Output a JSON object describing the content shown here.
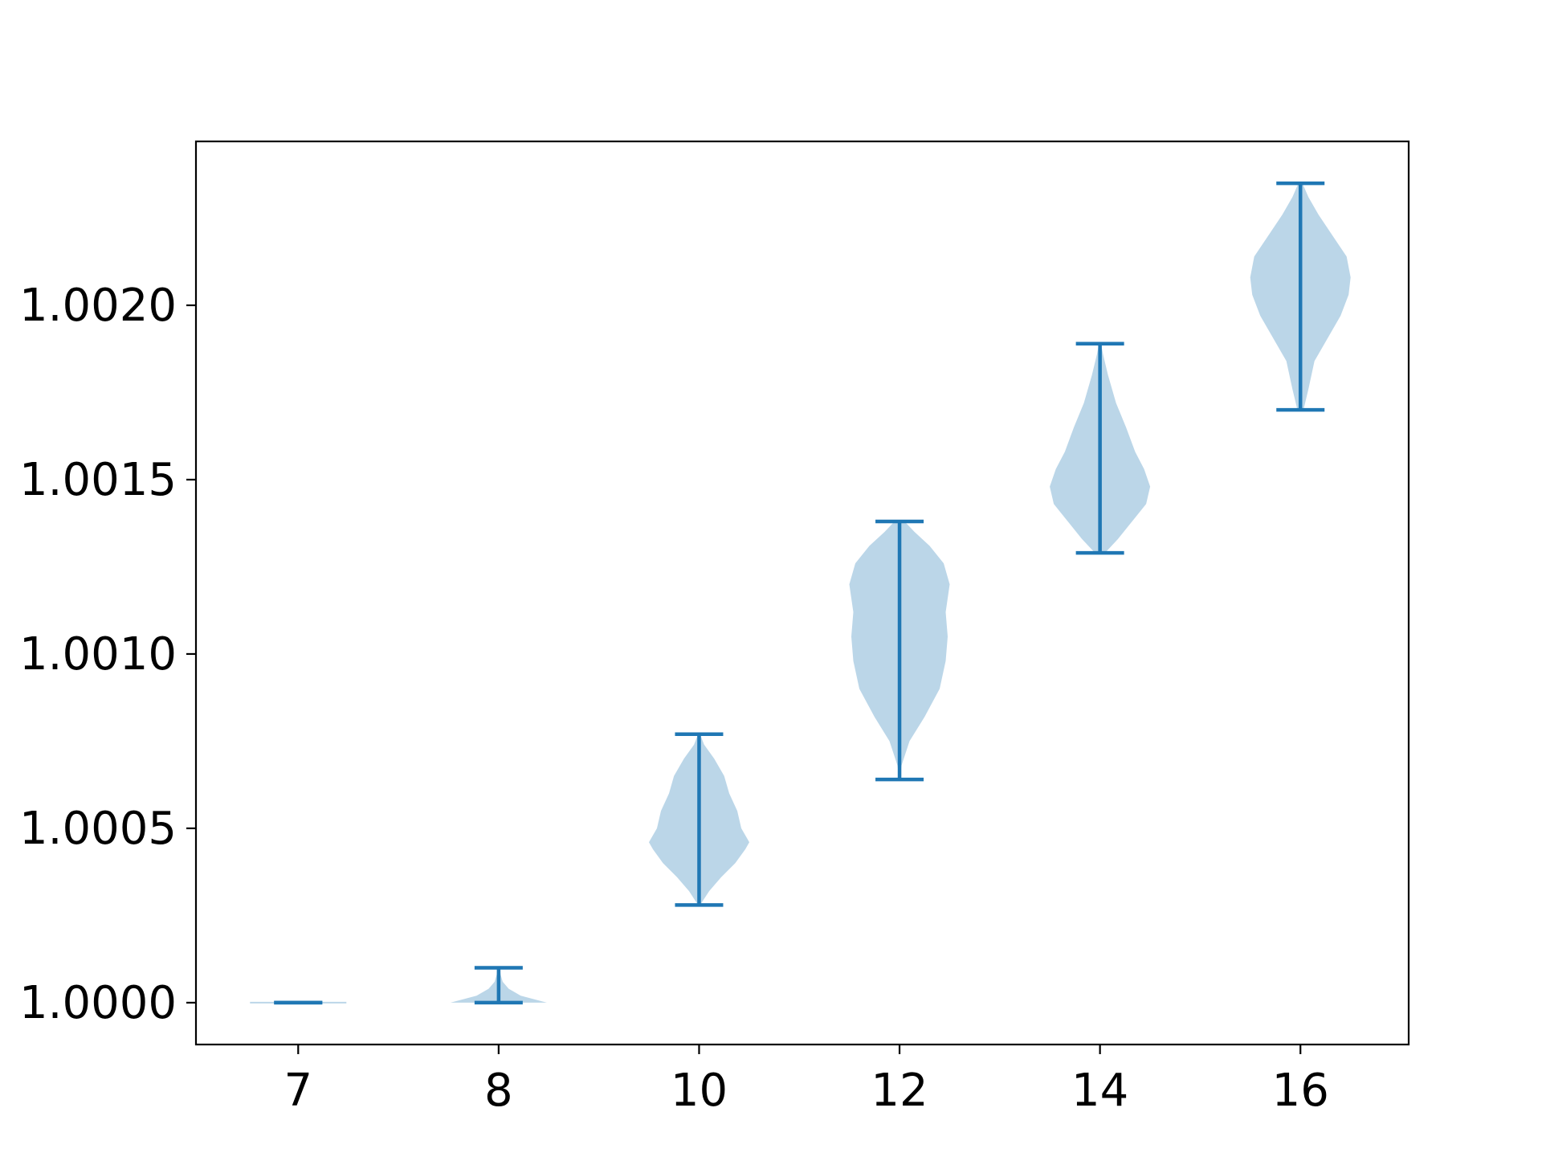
{
  "chart_data": {
    "type": "violin",
    "title": "",
    "xlabel": "",
    "ylabel": "",
    "categories": [
      "7",
      "8",
      "10",
      "12",
      "14",
      "16"
    ],
    "ylim": [
      0.99988,
      1.00247
    ],
    "yticks": [
      "1.0000",
      "1.0005",
      "1.0010",
      "1.0015",
      "1.0020"
    ],
    "ytick_values": [
      1.0,
      1.0005,
      1.001,
      1.0015,
      1.002
    ],
    "grid": false,
    "colors": {
      "body": "#1f77b4",
      "line": "#1f77b4",
      "axis": "#000000"
    },
    "series": [
      {
        "category": "7",
        "min": 1.0,
        "max": 1.0,
        "density": [
          [
            1.0,
            0.48
          ]
        ]
      },
      {
        "category": "8",
        "min": 1.0,
        "max": 1.0001,
        "density": [
          [
            1.0,
            0.48
          ],
          [
            1.00002,
            0.22
          ],
          [
            1.00004,
            0.1
          ],
          [
            1.00006,
            0.04
          ],
          [
            1.00008,
            0.02
          ],
          [
            1.0001,
            0.01
          ]
        ]
      },
      {
        "category": "10",
        "min": 1.00028,
        "max": 1.00077,
        "density": [
          [
            1.00028,
            0.01
          ],
          [
            1.00032,
            0.1
          ],
          [
            1.00036,
            0.22
          ],
          [
            1.0004,
            0.36
          ],
          [
            1.00044,
            0.46
          ],
          [
            1.00046,
            0.5
          ],
          [
            1.0005,
            0.42
          ],
          [
            1.00055,
            0.38
          ],
          [
            1.0006,
            0.3
          ],
          [
            1.00065,
            0.25
          ],
          [
            1.0007,
            0.15
          ],
          [
            1.00074,
            0.05
          ],
          [
            1.00077,
            0.01
          ]
        ]
      },
      {
        "category": "12",
        "min": 1.00064,
        "max": 1.00138,
        "density": [
          [
            1.00064,
            0.0
          ],
          [
            1.00068,
            0.02
          ],
          [
            1.00075,
            0.1
          ],
          [
            1.00082,
            0.25
          ],
          [
            1.0009,
            0.4
          ],
          [
            1.00098,
            0.46
          ],
          [
            1.00105,
            0.48
          ],
          [
            1.00112,
            0.46
          ],
          [
            1.0012,
            0.5
          ],
          [
            1.00126,
            0.44
          ],
          [
            1.00131,
            0.3
          ],
          [
            1.00135,
            0.15
          ],
          [
            1.00138,
            0.05
          ]
        ]
      },
      {
        "category": "14",
        "min": 1.00129,
        "max": 1.00189,
        "density": [
          [
            1.00129,
            0.05
          ],
          [
            1.00133,
            0.18
          ],
          [
            1.00138,
            0.32
          ],
          [
            1.00143,
            0.46
          ],
          [
            1.00148,
            0.5
          ],
          [
            1.00153,
            0.44
          ],
          [
            1.00158,
            0.35
          ],
          [
            1.00165,
            0.26
          ],
          [
            1.00172,
            0.16
          ],
          [
            1.0018,
            0.08
          ],
          [
            1.00186,
            0.03
          ],
          [
            1.00189,
            0.01
          ]
        ]
      },
      {
        "category": "16",
        "min": 1.0017,
        "max": 1.00235,
        "density": [
          [
            1.0017,
            0.03
          ],
          [
            1.00176,
            0.08
          ],
          [
            1.00184,
            0.14
          ],
          [
            1.0019,
            0.26
          ],
          [
            1.00197,
            0.4
          ],
          [
            1.00203,
            0.48
          ],
          [
            1.00208,
            0.5
          ],
          [
            1.00214,
            0.46
          ],
          [
            1.0022,
            0.32
          ],
          [
            1.00226,
            0.18
          ],
          [
            1.00231,
            0.08
          ],
          [
            1.00235,
            0.02
          ]
        ]
      }
    ]
  }
}
